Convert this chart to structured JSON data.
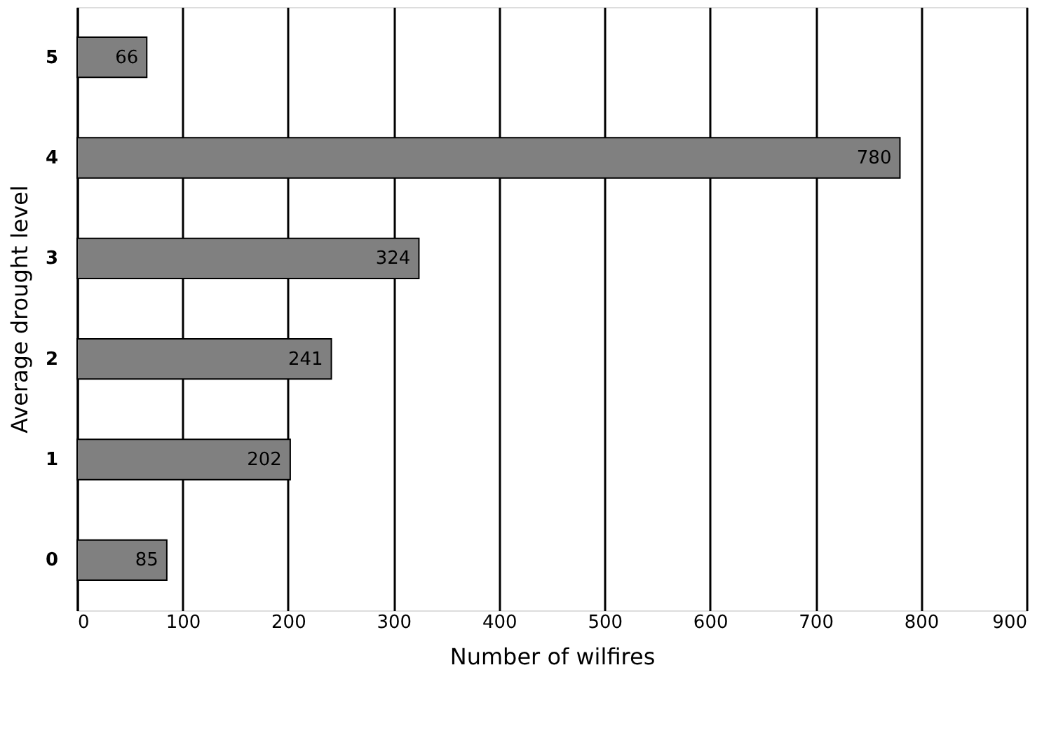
{
  "chart_data": {
    "type": "bar",
    "orientation": "horizontal",
    "xlabel": "Number of wilfires",
    "ylabel": "Average drought level",
    "categories": [
      "5",
      "4",
      "3",
      "2",
      "1",
      "0"
    ],
    "values": [
      66,
      780,
      324,
      241,
      202,
      85
    ],
    "color": "#808080",
    "xlim": [
      0,
      900
    ],
    "xticks": [
      0,
      100,
      200,
      300,
      400,
      500,
      600,
      700,
      800,
      900
    ],
    "grid": "x",
    "data_labels": true
  }
}
